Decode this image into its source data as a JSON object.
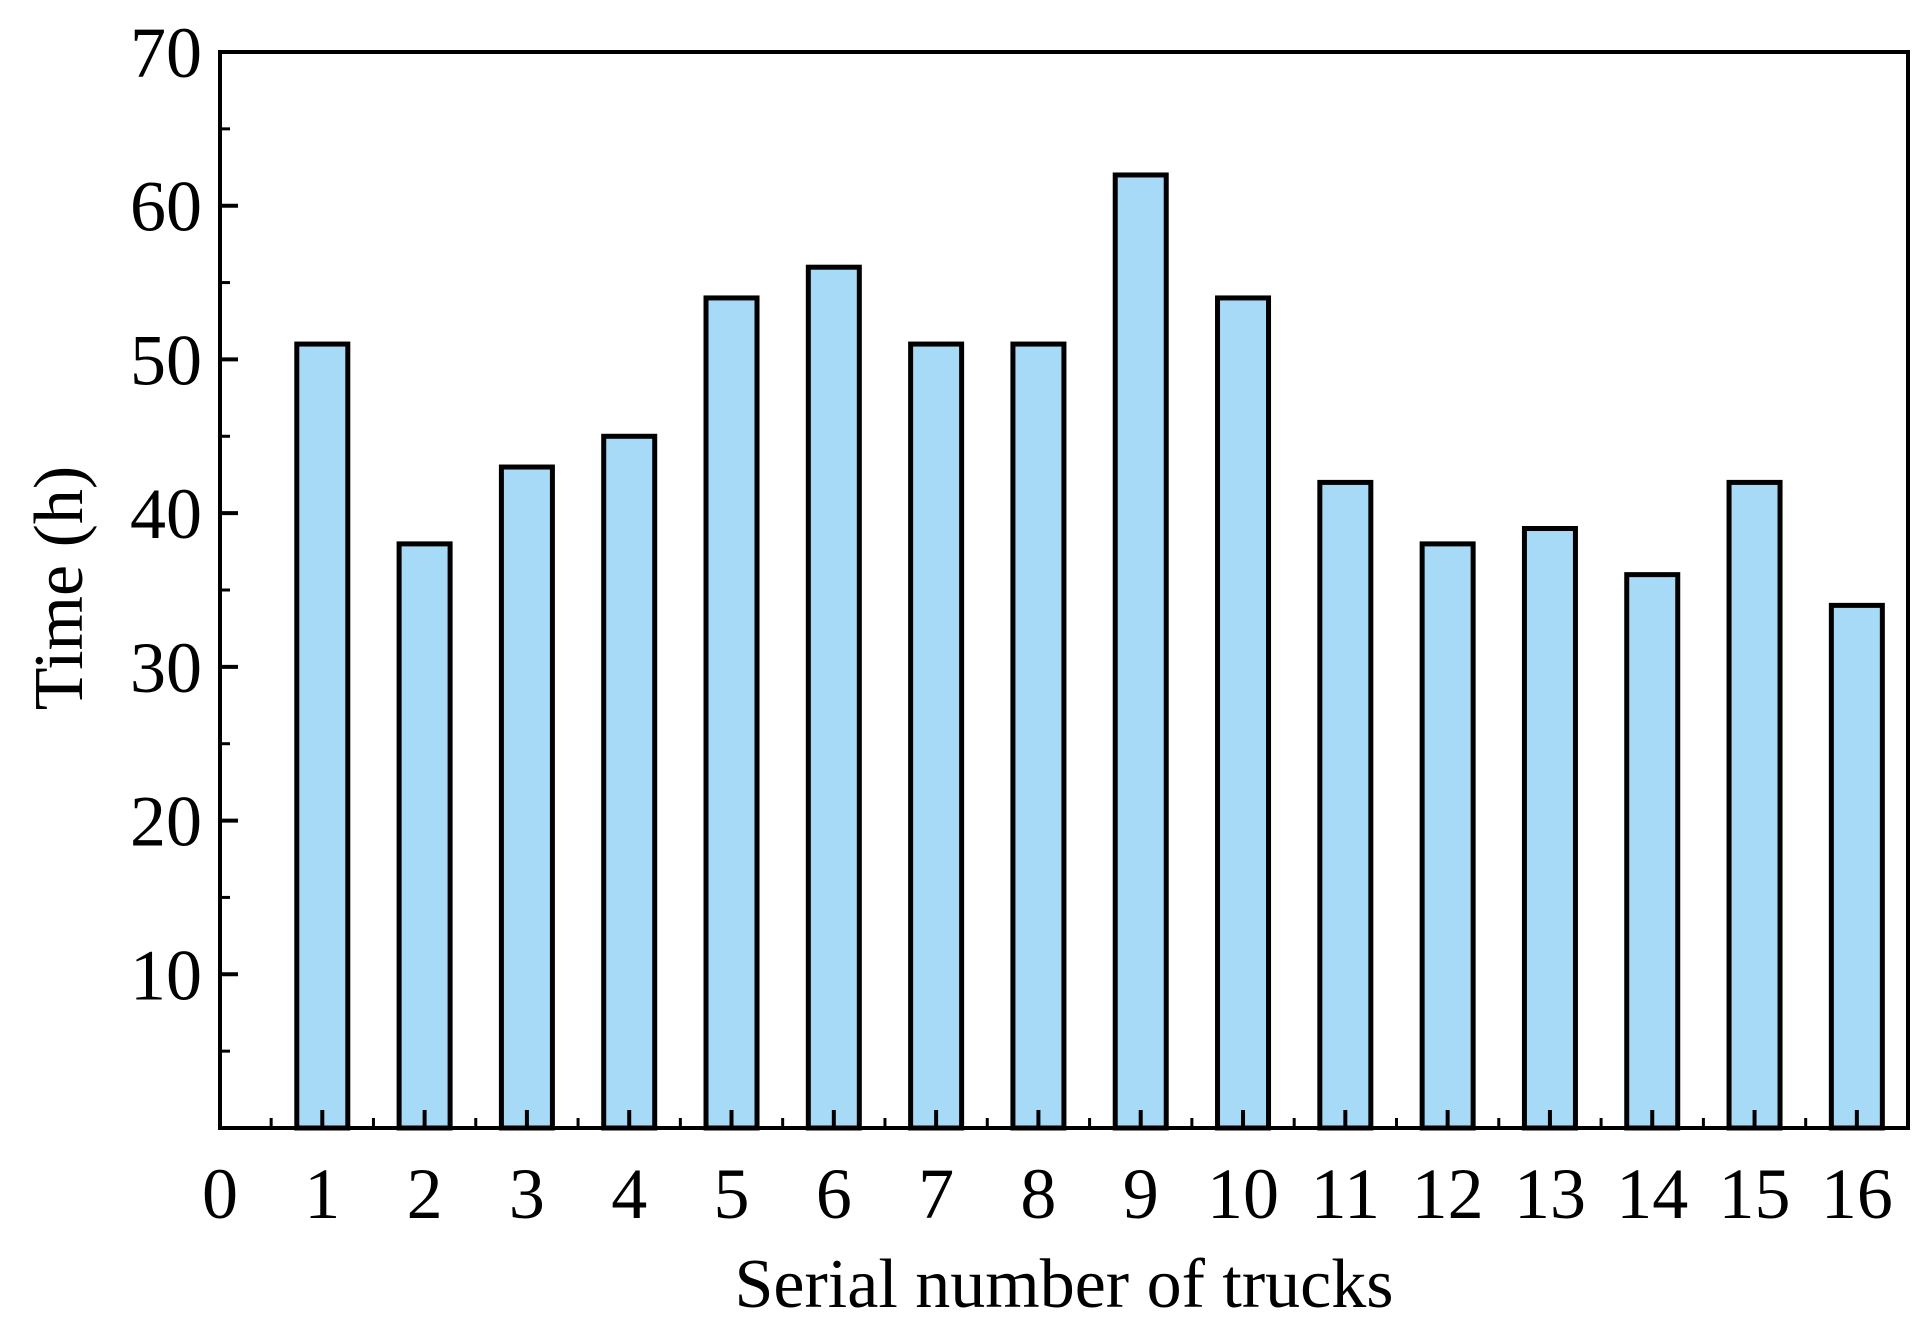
{
  "chart_data": {
    "type": "bar",
    "title": "",
    "xlabel": "Serial number of trucks",
    "ylabel": "Time (h)",
    "x_ticks": [
      "0",
      "1",
      "2",
      "3",
      "4",
      "5",
      "6",
      "7",
      "8",
      "9",
      "10",
      "11",
      "12",
      "13",
      "14",
      "15",
      "16"
    ],
    "categories": [
      1,
      2,
      3,
      4,
      5,
      6,
      7,
      8,
      9,
      10,
      11,
      12,
      13,
      14,
      15,
      16
    ],
    "values": [
      51,
      38,
      43,
      45,
      54,
      56,
      51,
      51,
      62,
      54,
      42,
      38,
      39,
      36,
      42,
      34
    ],
    "y_ticks": [
      10,
      20,
      30,
      40,
      50,
      60,
      70
    ],
    "xlim": [
      0,
      16.5
    ],
    "ylim": [
      0,
      70
    ],
    "grid": false,
    "legend": "none",
    "bar_color": "#a6daf6",
    "bar_edge_color": "#000000"
  }
}
